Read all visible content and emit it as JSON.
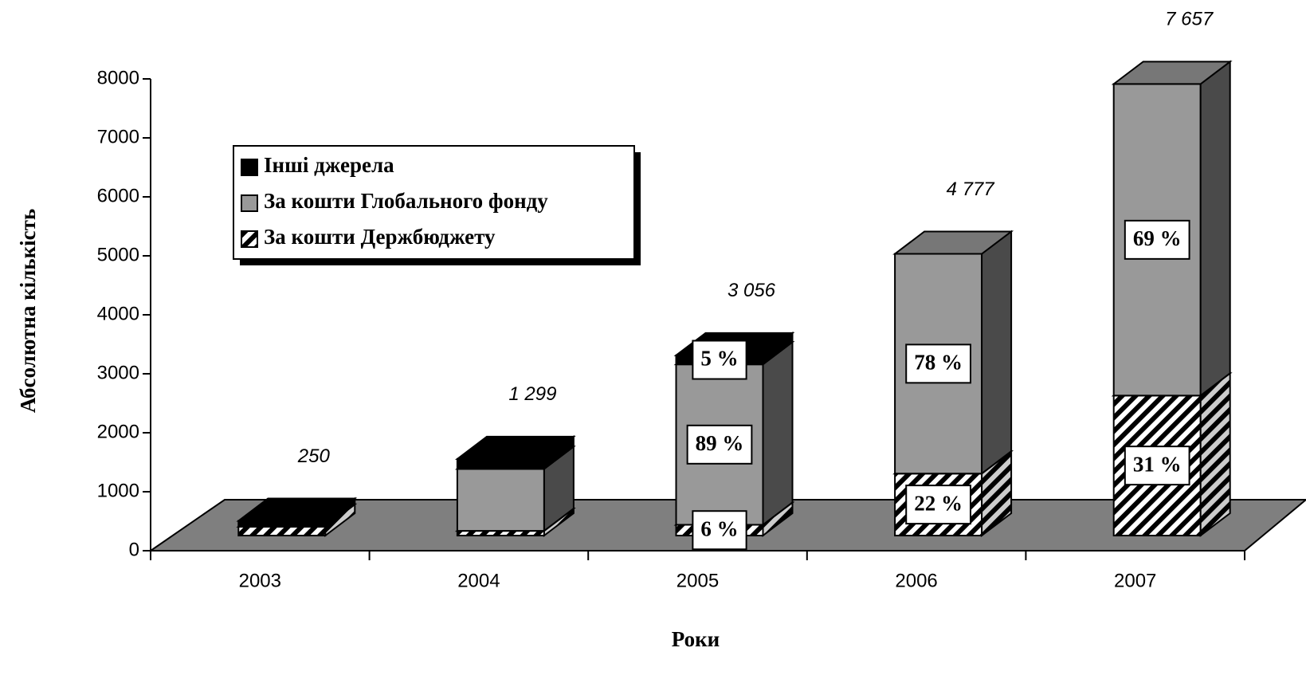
{
  "chart_data": {
    "type": "bar3d_stacked",
    "xlabel": "Роки",
    "ylabel": "Абсолютна кількість",
    "categories": [
      "2003",
      "2004",
      "2005",
      "2006",
      "2007"
    ],
    "series": [
      {
        "name": "За кошти Держбюджету",
        "color": "hatch",
        "values": [
          150,
          80,
          183,
          1051,
          2374
        ],
        "share_labels": [
          null,
          null,
          "6 %",
          "22 %",
          "31 %"
        ]
      },
      {
        "name": "За кошти Глобального фонду",
        "color": "#999999",
        "values": [
          0,
          1050,
          2720,
          3726,
          5283
        ],
        "share_labels": [
          null,
          null,
          "89 %",
          "78 %",
          "69 %"
        ]
      },
      {
        "name": "Інші джерела",
        "color": "#000000",
        "values": [
          100,
          169,
          153,
          0,
          0
        ],
        "share_labels": [
          null,
          null,
          "5 %",
          null,
          null
        ]
      }
    ],
    "totals": [
      250,
      1299,
      3056,
      4777,
      7657
    ],
    "total_labels": [
      "250",
      "1 299",
      "3 056",
      "4 777",
      "7 657"
    ],
    "ylim": [
      0,
      8000
    ],
    "yticks": [
      0,
      1000,
      2000,
      3000,
      4000,
      5000,
      6000,
      7000,
      8000
    ]
  }
}
